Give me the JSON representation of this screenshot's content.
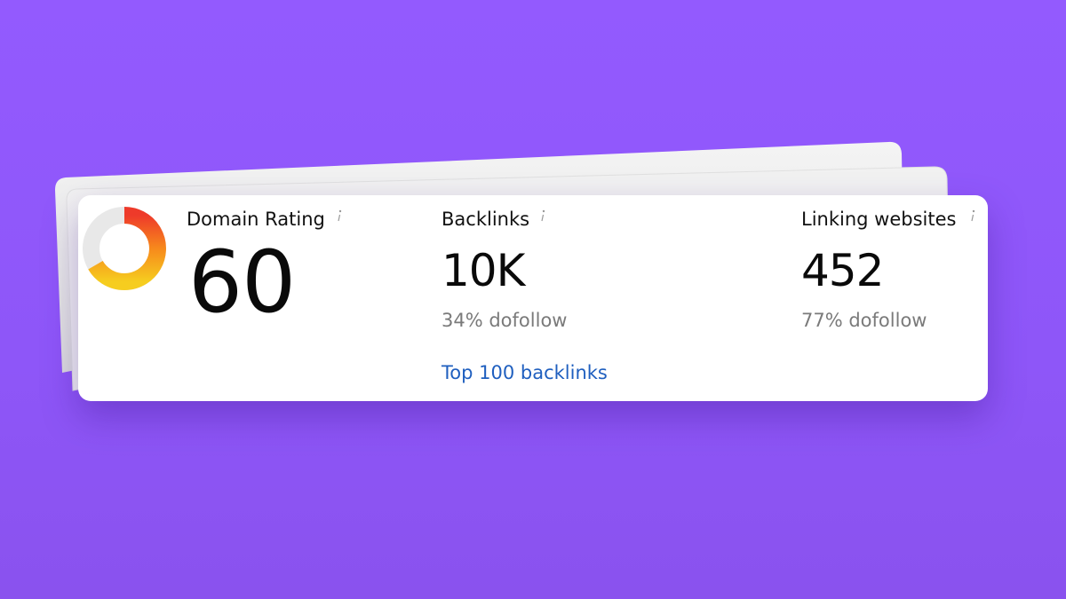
{
  "metrics": [
    {
      "label": "Domain Rating",
      "value": 60
    },
    {
      "label": "Backlinks",
      "value": "10K",
      "note": "34% dofollow",
      "link": "Top 100 backlinks"
    },
    {
      "label": "Linking websites",
      "value": 452,
      "note": "77% dofollow"
    }
  ]
}
